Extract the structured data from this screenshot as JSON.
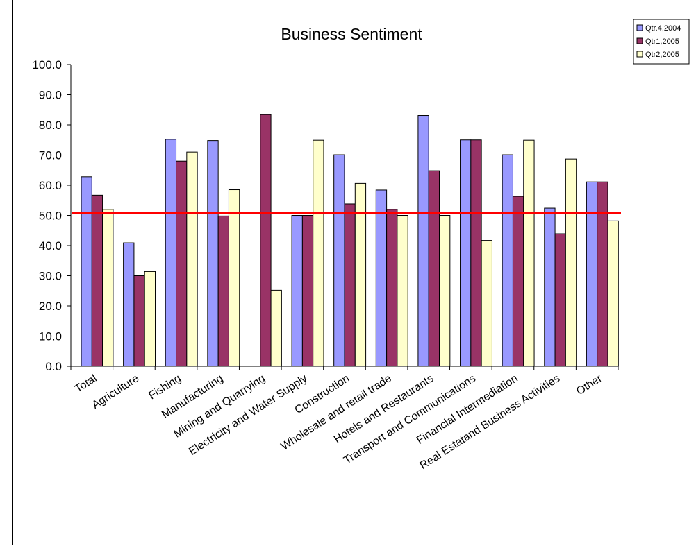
{
  "chart_data": {
    "type": "bar",
    "title": "Business Sentiment",
    "xlabel": "",
    "ylabel": "",
    "ylim": [
      0,
      100
    ],
    "yticks": [
      "0.0",
      "10.0",
      "20.0",
      "30.0",
      "40.0",
      "50.0",
      "60.0",
      "70.0",
      "80.0",
      "90.0",
      "100.0"
    ],
    "categories": [
      "Total",
      "Agriculture",
      "Fishing",
      "Manufacturing",
      "Mining and Quarrying",
      "Electricity and Water Supply",
      "Construction",
      "Wholesale and retail trade",
      "Hotels and Restaurants",
      "Transport and Communications",
      "Financial Intermediation",
      "Real Estatand Business Activities",
      "Other"
    ],
    "series": [
      {
        "name": "Qtr.4,2004",
        "color": "#9999ff",
        "values": [
          62.8,
          40.9,
          75.2,
          74.8,
          0,
          50.0,
          70.1,
          58.4,
          83.1,
          75.0,
          70.1,
          52.4,
          61.1
        ]
      },
      {
        "name": "Qtr1,2005",
        "color": "#993366",
        "values": [
          56.7,
          30.0,
          68.0,
          49.8,
          83.4,
          50.0,
          53.8,
          52.0,
          64.8,
          75.0,
          56.3,
          43.9,
          61.1
        ]
      },
      {
        "name": "Qtr2,2005",
        "color": "#ffffcc",
        "values": [
          52.0,
          31.4,
          71.0,
          58.5,
          25.2,
          74.9,
          60.6,
          50.0,
          50.0,
          41.7,
          74.9,
          68.7,
          48.2
        ]
      }
    ],
    "reference_line": {
      "value": 50.7,
      "color": "#ff0000"
    },
    "grid": false,
    "legend_position": "top-right"
  }
}
